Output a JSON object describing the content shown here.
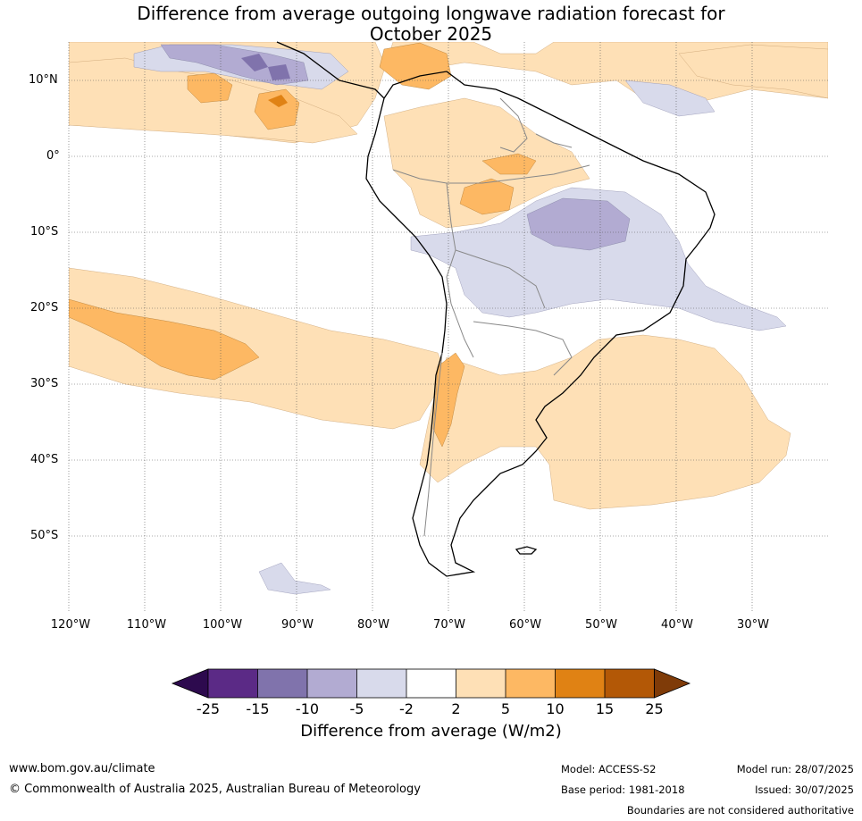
{
  "title_line1": "Difference from average outgoing longwave radiation forecast for",
  "title_line2": "October 2025",
  "lat_labels": [
    "10°N",
    "0°",
    "10°S",
    "20°S",
    "30°S",
    "40°S",
    "50°S"
  ],
  "lon_labels": [
    "120°W",
    "110°W",
    "100°W",
    "90°W",
    "80°W",
    "70°W",
    "60°W",
    "50°W",
    "40°W",
    "30°W"
  ],
  "colorbar": {
    "ticks": [
      "-25",
      "-15",
      "-10",
      "-5",
      "-2",
      "2",
      "5",
      "10",
      "15",
      "25"
    ],
    "colors": [
      "#2d0a4e",
      "#5b2a86",
      "#8073ac",
      "#b2abd2",
      "#d8daeb",
      "#ffffff",
      "#fee0b6",
      "#fdb863",
      "#e08214",
      "#b35806",
      "#7f3b08"
    ],
    "label": "Difference from average (W/m2)"
  },
  "footer": {
    "website": "www.bom.gov.au/climate",
    "copyright": "© Commonwealth of Australia 2025, Australian Bureau of Meteorology",
    "model": "Model: ACCESS-S2",
    "base_period": "Base period: 1981-2018",
    "model_run": "Model run: 28/07/2025",
    "issued": "Issued: 30/07/2025",
    "disclaimer": "Boundaries are not considered authoritative"
  }
}
